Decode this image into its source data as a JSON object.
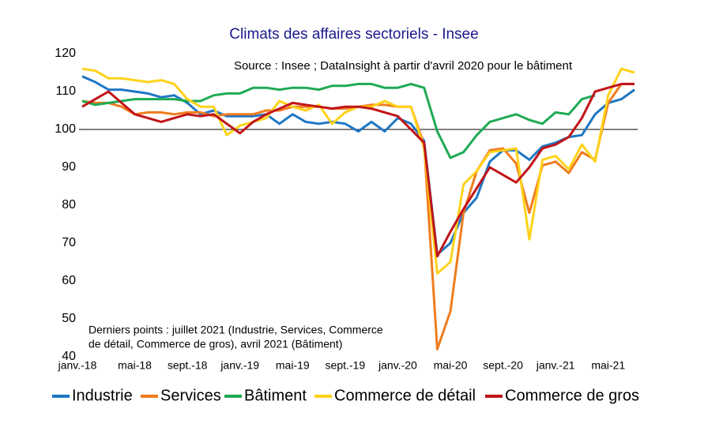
{
  "chart_data": {
    "type": "line",
    "title": "Climats des affaires sectoriels - Insee",
    "annotations": [
      "Source : Insee ; DataInsight à partir d'avril 2020 pour le bâtiment",
      "Derniers points : juillet 2021 (Industrie, Services, Commerce",
      "de détail, Commerce de gros), avril 2021 (Bâtiment)"
    ],
    "categories": [
      "janv.-18",
      null,
      null,
      null,
      "mai-18",
      null,
      null,
      null,
      "sept.-18",
      null,
      null,
      null,
      "janv.-19",
      null,
      null,
      null,
      "mai-19",
      null,
      null,
      null,
      "sept.-19",
      null,
      null,
      null,
      "janv.-20",
      null,
      null,
      null,
      "mai-20",
      null,
      null,
      null,
      "sept.-20",
      null,
      null,
      null,
      "janv.-21",
      null,
      null,
      null,
      "mai-21",
      null,
      null
    ],
    "series": [
      {
        "name": "Industrie",
        "color": "#1f77c4",
        "values": [
          114,
          112.5,
          110.5,
          110.5,
          110,
          109.5,
          108.5,
          109,
          107,
          104,
          105,
          103.5,
          103.5,
          103.5,
          104,
          101.5,
          104,
          102,
          101.5,
          102,
          101.5,
          99.5,
          102,
          99.5,
          103,
          101.5,
          97,
          67,
          70,
          78,
          82,
          91.5,
          94.5,
          94.5,
          92,
          95.5,
          96.5,
          98,
          98.5,
          104,
          107,
          108,
          110.5
        ]
      },
      {
        "name": "Services",
        "color": "#f07c1e",
        "values": [
          107.5,
          107,
          107,
          106,
          104,
          104.5,
          104.5,
          104,
          104.5,
          104.5,
          103.5,
          104,
          104,
          104,
          105,
          105,
          106,
          106,
          106,
          105.5,
          105.5,
          106,
          106.5,
          106.5,
          106,
          106,
          96,
          42,
          52,
          78,
          89,
          94.5,
          95,
          91,
          78,
          90.5,
          91.5,
          88.5,
          94,
          92,
          107,
          112,
          112
        ]
      },
      {
        "name": "Bâtiment",
        "color": "#1faa55",
        "values": [
          107.5,
          106.5,
          107,
          107.5,
          108,
          108,
          108,
          108,
          107.5,
          107.5,
          109,
          109.5,
          109.5,
          111,
          111,
          110.5,
          111,
          111,
          110.5,
          111.5,
          111.5,
          112,
          112,
          111,
          111,
          112,
          111,
          99.5,
          92.5,
          94,
          98.5,
          102,
          103,
          104,
          102.5,
          101.5,
          104.5,
          104,
          108,
          109,
          null,
          null,
          null
        ]
      },
      {
        "name": "Commerce de détail",
        "color": "#ffd21a",
        "values": [
          116,
          115.5,
          113.5,
          113.5,
          113,
          112.5,
          113,
          112,
          108,
          106,
          106,
          98.5,
          101,
          102,
          103,
          107.5,
          106,
          105,
          106.5,
          101.5,
          104.5,
          106,
          106,
          107.5,
          106,
          106,
          95,
          62,
          65,
          85.5,
          89,
          94,
          94.5,
          95,
          71,
          92,
          93,
          89.5,
          96,
          91.5,
          109,
          116,
          115
        ]
      },
      {
        "name": "Commerce de gros",
        "color": "#c0141a",
        "values": [
          106,
          108,
          110,
          107,
          104,
          103,
          102,
          103,
          104,
          103.5,
          104,
          101.5,
          99,
          102,
          104,
          105.5,
          107,
          106.5,
          106,
          105.5,
          106,
          106,
          105.5,
          104.5,
          103.5,
          100,
          96.5,
          66.5,
          73,
          79,
          84.5,
          90,
          88,
          86,
          90,
          95,
          96,
          98,
          103,
          110,
          111,
          112,
          112
        ]
      }
    ],
    "ylim": [
      40,
      120
    ],
    "yticks": [
      40,
      50,
      60,
      70,
      80,
      90,
      100,
      110,
      120
    ],
    "reference_line": 100,
    "grid": false,
    "legend": "bottom"
  }
}
